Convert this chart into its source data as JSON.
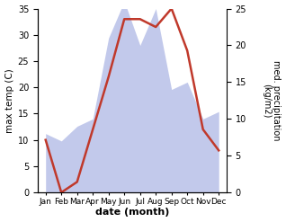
{
  "months": [
    "Jan",
    "Feb",
    "Mar",
    "Apr",
    "May",
    "Jun",
    "Jul",
    "Aug",
    "Sep",
    "Oct",
    "Nov",
    "Dec"
  ],
  "month_positions": [
    1,
    2,
    3,
    4,
    5,
    6,
    7,
    8,
    9,
    10,
    11,
    12
  ],
  "temperature": [
    10,
    0,
    2,
    12,
    22,
    33,
    33,
    31.5,
    35,
    27,
    12,
    8
  ],
  "precipitation_mm": [
    8,
    7,
    9,
    10,
    21,
    26,
    20,
    25,
    14,
    15,
    10,
    11
  ],
  "temp_color": "#c0392b",
  "precip_fill_color": "#b8c0e8",
  "temp_ylim": [
    0,
    35
  ],
  "temp_yticks": [
    0,
    5,
    10,
    15,
    20,
    25,
    30,
    35
  ],
  "precip_ylim": [
    0,
    25
  ],
  "precip_yticks": [
    0,
    5,
    10,
    15,
    20,
    25
  ],
  "xlabel": "date (month)",
  "ylabel_left": "max temp (C)",
  "ylabel_right": "med. precipitation\n(kg/m2)",
  "bg_color": "#ffffff",
  "line_width": 1.8,
  "fill_alpha": 0.85,
  "precip_scale": 1.4
}
